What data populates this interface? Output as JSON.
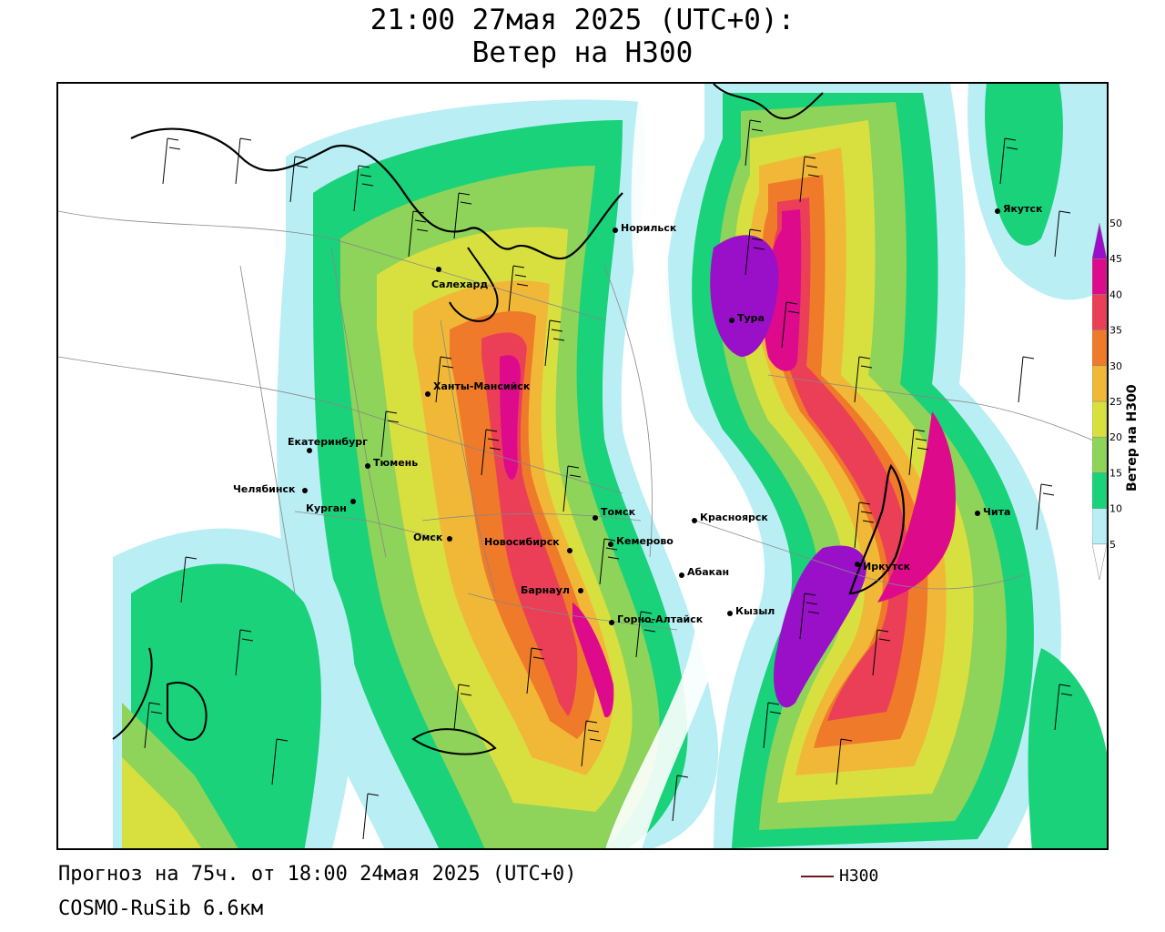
{
  "header": {
    "title_line1": "21:00 27мая 2025 (UTC+0):",
    "title_line2": "Ветер на H300"
  },
  "map": {
    "cities": [
      {
        "name": "Якутск"
      },
      {
        "name": "Норильск"
      },
      {
        "name": "Салехард"
      },
      {
        "name": "Тура"
      },
      {
        "name": "Ханты-Мансийск"
      },
      {
        "name": "Екатеринбург"
      },
      {
        "name": "Тюмень"
      },
      {
        "name": "Челябинск"
      },
      {
        "name": "Курган"
      },
      {
        "name": "Омск"
      },
      {
        "name": "Томск"
      },
      {
        "name": "Новосибирск"
      },
      {
        "name": "Кемерово"
      },
      {
        "name": "Красноярск"
      },
      {
        "name": "Абакан"
      },
      {
        "name": "Барнаул"
      },
      {
        "name": "Горно-Алтайск"
      },
      {
        "name": "Кызыл"
      },
      {
        "name": "Иркутск"
      },
      {
        "name": "Чита"
      }
    ]
  },
  "colorbar": {
    "title": "Ветер на H300",
    "levels": [
      "5",
      "10",
      "15",
      "20",
      "25",
      "30",
      "35",
      "40",
      "45",
      "50"
    ],
    "colors": [
      "#ffffff",
      "#b9eef5",
      "#19d27a",
      "#8ed35a",
      "#d8e040",
      "#f1b838",
      "#ee7a2a",
      "#ea3f57",
      "#de0a8c",
      "#9a10c8"
    ]
  },
  "footer": {
    "forecast": "Прогноз на 75ч. от 18:00 24мая 2025 (UTC+0)",
    "model": "COSMO-RuSib 6.6км"
  },
  "legend": {
    "label": "H300",
    "color": "#6a1a1a"
  }
}
